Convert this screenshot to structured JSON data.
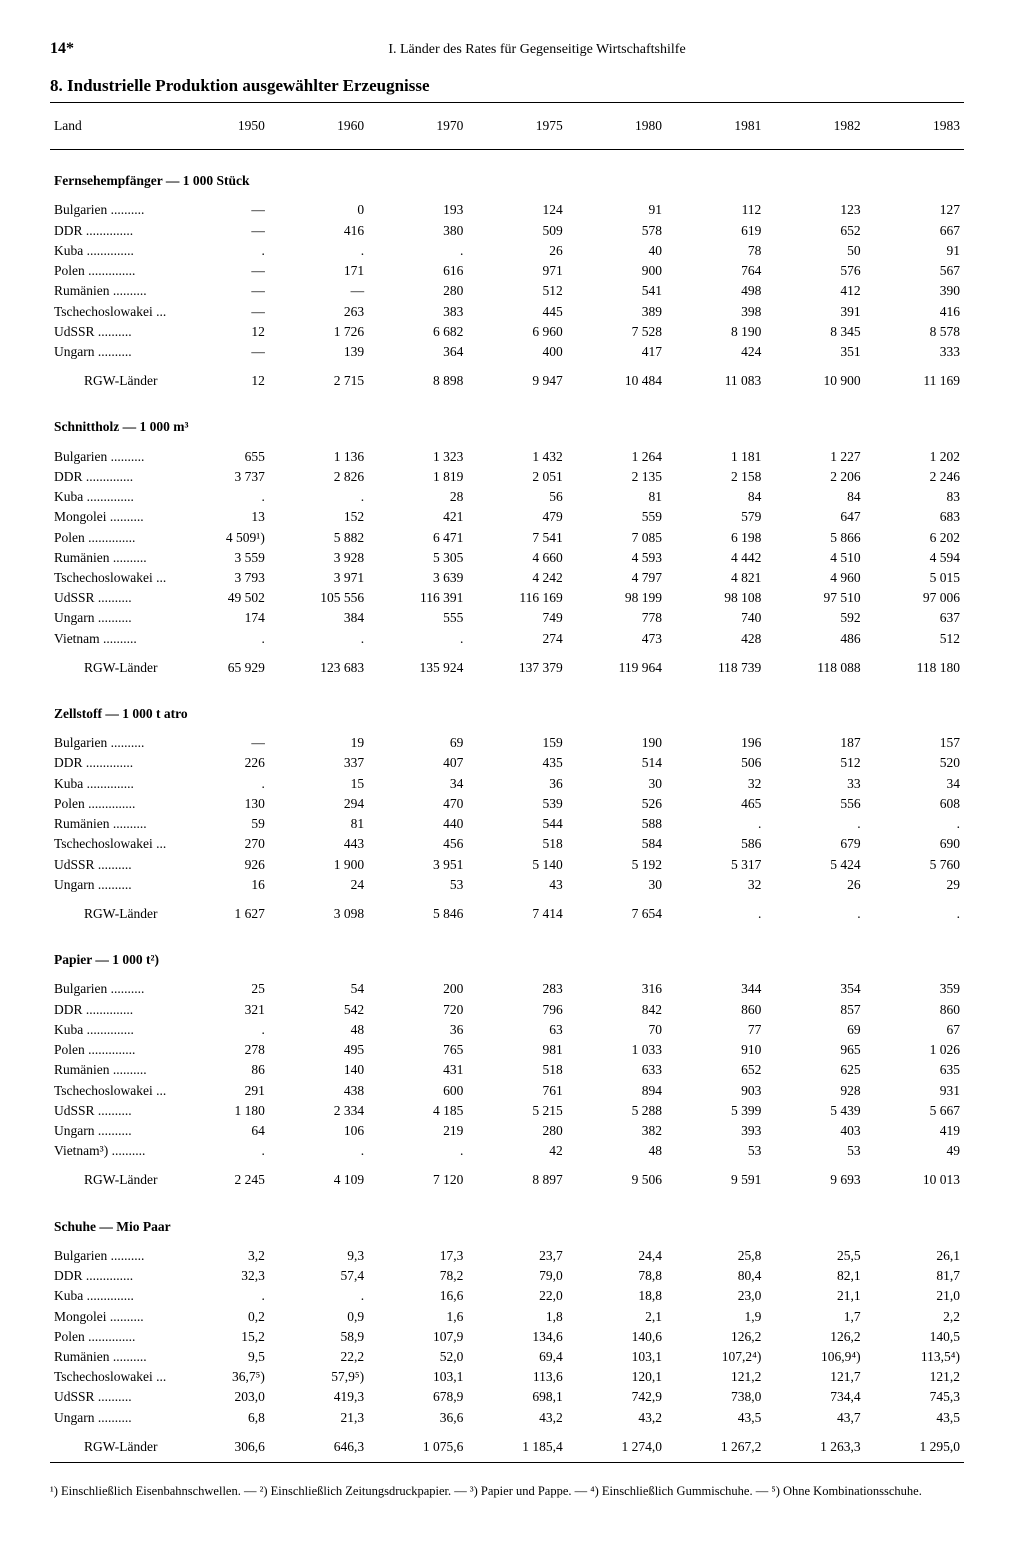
{
  "page_number": "14*",
  "chapter_title": "I. Länder des Rates für Gegenseitige Wirtschaftshilfe",
  "table_title": "8. Industrielle Produktion ausgewählter Erzeugnisse",
  "columns": [
    "Land",
    "1950",
    "1960",
    "1970",
    "1975",
    "1980",
    "1981",
    "1982",
    "1983"
  ],
  "total_label": "RGW-Länder",
  "sections": [
    {
      "title": "Fernsehempfänger — 1 000 Stück",
      "rows": [
        [
          "Bulgarien ..........",
          "—",
          "0",
          "193",
          "124",
          "91",
          "112",
          "123",
          "127"
        ],
        [
          "DDR  ..............",
          "—",
          "416",
          "380",
          "509",
          "578",
          "619",
          "652",
          "667"
        ],
        [
          "Kuba ..............",
          ".",
          ".",
          ".",
          "26",
          "40",
          "78",
          "50",
          "91"
        ],
        [
          "Polen ..............",
          "—",
          "171",
          "616",
          "971",
          "900",
          "764",
          "576",
          "567"
        ],
        [
          "Rumänien ..........",
          "—",
          "—",
          "280",
          "512",
          "541",
          "498",
          "412",
          "390"
        ],
        [
          "Tschechoslowakei ...",
          "—",
          "263",
          "383",
          "445",
          "389",
          "398",
          "391",
          "416"
        ],
        [
          "UdSSR ..........",
          "12",
          "1 726",
          "6 682",
          "6 960",
          "7 528",
          "8 190",
          "8 345",
          "8 578"
        ],
        [
          "Ungarn ..........",
          "—",
          "139",
          "364",
          "400",
          "417",
          "424",
          "351",
          "333"
        ]
      ],
      "total": [
        "12",
        "2 715",
        "8 898",
        "9 947",
        "10 484",
        "11 083",
        "10 900",
        "11 169"
      ]
    },
    {
      "title": "Schnittholz — 1 000 m³",
      "rows": [
        [
          "Bulgarien ..........",
          "655",
          "1 136",
          "1 323",
          "1 432",
          "1 264",
          "1 181",
          "1 227",
          "1 202"
        ],
        [
          "DDR  ..............",
          "3 737",
          "2 826",
          "1 819",
          "2 051",
          "2 135",
          "2 158",
          "2 206",
          "2 246"
        ],
        [
          "Kuba ..............",
          ".",
          ".",
          "28",
          "56",
          "81",
          "84",
          "84",
          "83"
        ],
        [
          "Mongolei ..........",
          "13",
          "152",
          "421",
          "479",
          "559",
          "579",
          "647",
          "683"
        ],
        [
          "Polen ..............",
          "4 509¹)",
          "5 882",
          "6 471",
          "7 541",
          "7 085",
          "6 198",
          "5 866",
          "6 202"
        ],
        [
          "Rumänien ..........",
          "3 559",
          "3 928",
          "5 305",
          "4 660",
          "4 593",
          "4 442",
          "4 510",
          "4 594"
        ],
        [
          "Tschechoslowakei ...",
          "3 793",
          "3 971",
          "3 639",
          "4 242",
          "4 797",
          "4 821",
          "4 960",
          "5 015"
        ],
        [
          "UdSSR ..........",
          "49 502",
          "105 556",
          "116 391",
          "116 169",
          "98 199",
          "98 108",
          "97 510",
          "97 006"
        ],
        [
          "Ungarn ..........",
          "174",
          "384",
          "555",
          "749",
          "778",
          "740",
          "592",
          "637"
        ],
        [
          "Vietnam ..........",
          ".",
          ".",
          ".",
          "274",
          "473",
          "428",
          "486",
          "512"
        ]
      ],
      "total": [
        "65 929",
        "123 683",
        "135 924",
        "137 379",
        "119 964",
        "118 739",
        "118 088",
        "118 180"
      ]
    },
    {
      "title": "Zellstoff — 1 000 t atro",
      "rows": [
        [
          "Bulgarien ..........",
          "—",
          "19",
          "69",
          "159",
          "190",
          "196",
          "187",
          "157"
        ],
        [
          "DDR  ..............",
          "226",
          "337",
          "407",
          "435",
          "514",
          "506",
          "512",
          "520"
        ],
        [
          "Kuba ..............",
          ".",
          "15",
          "34",
          "36",
          "30",
          "32",
          "33",
          "34"
        ],
        [
          "Polen ..............",
          "130",
          "294",
          "470",
          "539",
          "526",
          "465",
          "556",
          "608"
        ],
        [
          "Rumänien ..........",
          "59",
          "81",
          "440",
          "544",
          "588",
          ".",
          ".",
          "."
        ],
        [
          "Tschechoslowakei ...",
          "270",
          "443",
          "456",
          "518",
          "584",
          "586",
          "679",
          "690"
        ],
        [
          "UdSSR ..........",
          "926",
          "1 900",
          "3 951",
          "5 140",
          "5 192",
          "5 317",
          "5 424",
          "5 760"
        ],
        [
          "Ungarn  ..........",
          "16",
          "24",
          "53",
          "43",
          "30",
          "32",
          "26",
          "29"
        ]
      ],
      "total": [
        "1 627",
        "3 098",
        "5 846",
        "7 414",
        "7 654",
        ".",
        ".",
        "."
      ]
    },
    {
      "title": "Papier — 1 000 t²)",
      "rows": [
        [
          "Bulgarien ..........",
          "25",
          "54",
          "200",
          "283",
          "316",
          "344",
          "354",
          "359"
        ],
        [
          "DDR  ..............",
          "321",
          "542",
          "720",
          "796",
          "842",
          "860",
          "857",
          "860"
        ],
        [
          "Kuba ..............",
          ".",
          "48",
          "36",
          "63",
          "70",
          "77",
          "69",
          "67"
        ],
        [
          "Polen ..............",
          "278",
          "495",
          "765",
          "981",
          "1 033",
          "910",
          "965",
          "1 026"
        ],
        [
          "Rumänien ..........",
          "86",
          "140",
          "431",
          "518",
          "633",
          "652",
          "625",
          "635"
        ],
        [
          "Tschechoslowakei ...",
          "291",
          "438",
          "600",
          "761",
          "894",
          "903",
          "928",
          "931"
        ],
        [
          "UdSSR ..........",
          "1 180",
          "2 334",
          "4 185",
          "5 215",
          "5 288",
          "5 399",
          "5 439",
          "5 667"
        ],
        [
          "Ungarn ..........",
          "64",
          "106",
          "219",
          "280",
          "382",
          "393",
          "403",
          "419"
        ],
        [
          "Vietnam³) ..........",
          ".",
          ".",
          ".",
          "42",
          "48",
          "53",
          "53",
          "49"
        ]
      ],
      "total": [
        "2 245",
        "4 109",
        "7 120",
        "8 897",
        "9 506",
        "9 591",
        "9 693",
        "10 013"
      ]
    },
    {
      "title": "Schuhe — Mio Paar",
      "rows": [
        [
          "Bulgarien ..........",
          "3,2",
          "9,3",
          "17,3",
          "23,7",
          "24,4",
          "25,8",
          "25,5",
          "26,1"
        ],
        [
          "DDR  ..............",
          "32,3",
          "57,4",
          "78,2",
          "79,0",
          "78,8",
          "80,4",
          "82,1",
          "81,7"
        ],
        [
          "Kuba ..............",
          ".",
          ".",
          "16,6",
          "22,0",
          "18,8",
          "23,0",
          "21,1",
          "21,0"
        ],
        [
          "Mongolei ..........",
          "0,2",
          "0,9",
          "1,6",
          "1,8",
          "2,1",
          "1,9",
          "1,7",
          "2,2"
        ],
        [
          "Polen ..............",
          "15,2",
          "58,9",
          "107,9",
          "134,6",
          "140,6",
          "126,2",
          "126,2",
          "140,5"
        ],
        [
          "Rumänien ..........",
          "9,5",
          "22,2",
          "52,0",
          "69,4",
          "103,1",
          "107,2⁴)",
          "106,9⁴)",
          "113,5⁴)"
        ],
        [
          "Tschechoslowakei ...",
          "36,7⁵)",
          "57,9⁵)",
          "103,1",
          "113,6",
          "120,1",
          "121,2",
          "121,7",
          "121,2"
        ],
        [
          "UdSSR ..........",
          "203,0",
          "419,3",
          "678,9",
          "698,1",
          "742,9",
          "738,0",
          "734,4",
          "745,3"
        ],
        [
          "Ungarn ..........",
          "6,8",
          "21,3",
          "36,6",
          "43,2",
          "43,2",
          "43,5",
          "43,7",
          "43,5"
        ]
      ],
      "total": [
        "306,6",
        "646,3",
        "1 075,6",
        "1 185,4",
        "1 274,0",
        "1 267,2",
        "1 263,3",
        "1 295,0"
      ]
    }
  ],
  "footnotes": "¹) Einschließlich Eisenbahnschwellen. — ²) Einschließlich Zeitungsdruckpapier. — ³) Papier und Pappe. — ⁴) Einschließlich Gummischuhe. — ⁵) Ohne Kombinationsschuhe."
}
